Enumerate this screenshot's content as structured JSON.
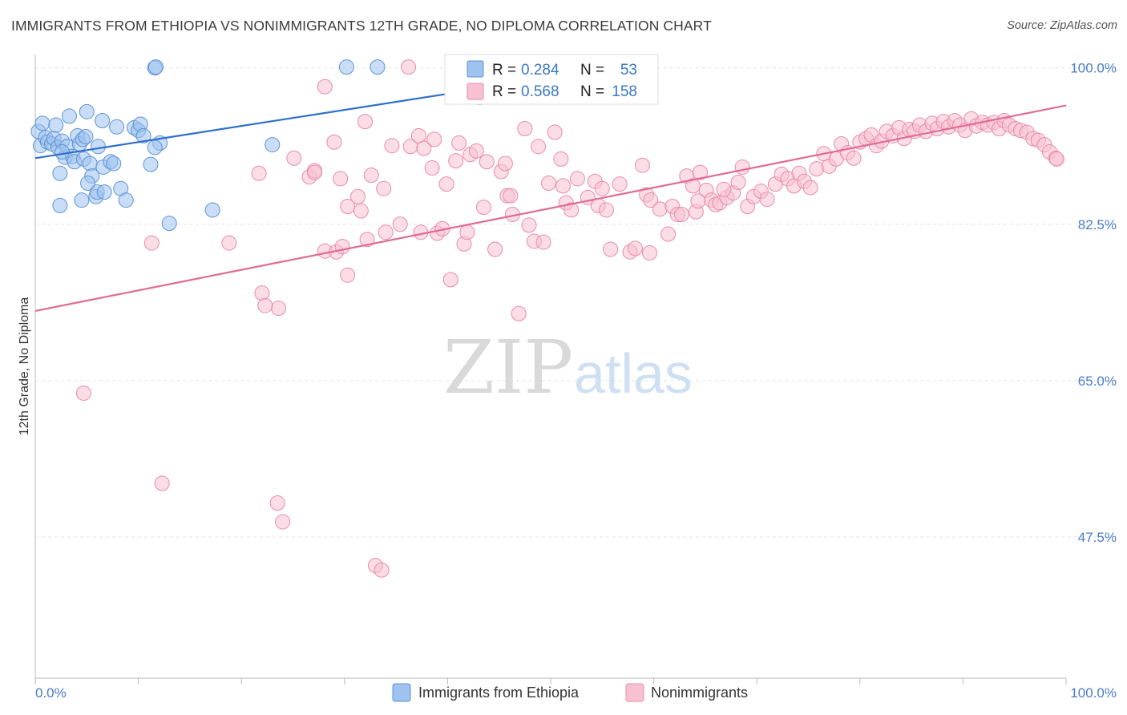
{
  "title": "IMMIGRANTS FROM ETHIOPIA VS NONIMMIGRANTS 12TH GRADE, NO DIPLOMA CORRELATION CHART",
  "source": "Source: ZipAtlas.com",
  "watermark": {
    "zip": "ZIP",
    "atlas": "atlas"
  },
  "legend": {
    "r_label": "R =",
    "n_label": "N =",
    "rows": [
      {
        "r": "0.284",
        "n": "53",
        "color": "#9dc3ee",
        "stroke": "#5d93d6"
      },
      {
        "r": "0.568",
        "n": "158",
        "color": "#f8c1d2",
        "stroke": "#e98aaa"
      }
    ]
  },
  "chart_data": {
    "type": "scatter",
    "title": "IMMIGRANTS FROM ETHIOPIA VS NONIMMIGRANTS 12TH GRADE, NO DIPLOMA CORRELATION CHART",
    "xlabel": "",
    "ylabel": "12th Grade, No Diploma",
    "xlim": [
      0,
      100
    ],
    "ylim": [
      31.7,
      101.5
    ],
    "x_tick_labels": [
      "0.0%",
      "100.0%"
    ],
    "y_ticks": [
      100.0,
      82.5,
      65.0,
      47.5
    ],
    "y_tick_labels": [
      "100.0%",
      "82.5%",
      "65.0%",
      "47.5%"
    ],
    "grid": true,
    "legend_position": "top-center",
    "series": [
      {
        "name": "Immigrants from Ethiopia",
        "color": "#9dc3ee",
        "stroke": "#5d93d6",
        "line_color": "#2d6fcc",
        "trend": [
          [
            0,
            89.9
          ],
          [
            40,
            97.1
          ]
        ],
        "points": [
          [
            0.3,
            92.9
          ],
          [
            0.5,
            91.3
          ],
          [
            0.7,
            93.8
          ],
          [
            1.0,
            92.2
          ],
          [
            1.2,
            91.7
          ],
          [
            1.6,
            91.5
          ],
          [
            1.8,
            92.1
          ],
          [
            2.0,
            93.6
          ],
          [
            2.2,
            91.1
          ],
          [
            2.4,
            88.2
          ],
          [
            2.4,
            84.6
          ],
          [
            2.6,
            91.8
          ],
          [
            2.9,
            90.0
          ],
          [
            3.1,
            91.2
          ],
          [
            3.3,
            94.6
          ],
          [
            3.6,
            90.1
          ],
          [
            3.8,
            89.5
          ],
          [
            4.1,
            92.4
          ],
          [
            4.3,
            91.5
          ],
          [
            4.5,
            85.2
          ],
          [
            4.6,
            92.0
          ],
          [
            4.7,
            89.8
          ],
          [
            4.9,
            92.3
          ],
          [
            5.0,
            95.1
          ],
          [
            5.3,
            89.3
          ],
          [
            5.5,
            87.9
          ],
          [
            5.9,
            85.6
          ],
          [
            6.0,
            86.1
          ],
          [
            6.1,
            91.2
          ],
          [
            6.5,
            94.1
          ],
          [
            6.6,
            88.9
          ],
          [
            6.7,
            86.1
          ],
          [
            7.3,
            89.5
          ],
          [
            7.6,
            89.3
          ],
          [
            7.9,
            93.4
          ],
          [
            8.3,
            86.5
          ],
          [
            8.8,
            85.2
          ],
          [
            9.6,
            93.3
          ],
          [
            10.0,
            93.0
          ],
          [
            10.2,
            93.7
          ],
          [
            10.5,
            92.4
          ],
          [
            11.2,
            89.2
          ],
          [
            11.6,
            100.0
          ],
          [
            11.7,
            100.1
          ],
          [
            12.1,
            91.6
          ],
          [
            11.6,
            91.1
          ],
          [
            2.6,
            90.6
          ],
          [
            5.1,
            87.1
          ],
          [
            13.0,
            82.6
          ],
          [
            17.2,
            84.1
          ],
          [
            23.0,
            91.4
          ],
          [
            30.2,
            100.1
          ],
          [
            33.2,
            100.1
          ]
        ]
      },
      {
        "name": "Nonimmigrants",
        "color": "#f8c1d2",
        "stroke": "#e98aaa",
        "line_color": "#e06b94",
        "trend": [
          [
            0,
            72.8
          ],
          [
            100,
            95.8
          ]
        ],
        "points": [
          [
            4.7,
            63.6
          ],
          [
            11.3,
            80.4
          ],
          [
            12.3,
            53.5
          ],
          [
            18.8,
            80.4
          ],
          [
            21.7,
            88.2
          ],
          [
            22.0,
            74.8
          ],
          [
            23.5,
            51.3
          ],
          [
            23.6,
            73.1
          ],
          [
            24.0,
            49.2
          ],
          [
            25.1,
            89.9
          ],
          [
            26.6,
            87.8
          ],
          [
            27.1,
            88.5
          ],
          [
            28.1,
            79.5
          ],
          [
            28.1,
            97.9
          ],
          [
            29.0,
            91.7
          ],
          [
            29.2,
            79.4
          ],
          [
            29.6,
            87.6
          ],
          [
            29.8,
            80.0
          ],
          [
            30.3,
            76.8
          ],
          [
            30.3,
            84.5
          ],
          [
            31.3,
            85.6
          ],
          [
            31.6,
            84.0
          ],
          [
            32.0,
            94.0
          ],
          [
            32.2,
            80.8
          ],
          [
            32.6,
            88.0
          ],
          [
            33.0,
            44.3
          ],
          [
            33.6,
            43.8
          ],
          [
            33.8,
            86.5
          ],
          [
            34.0,
            81.6
          ],
          [
            34.6,
            91.3
          ],
          [
            35.4,
            82.5
          ],
          [
            36.2,
            100.1
          ],
          [
            36.4,
            91.2
          ],
          [
            37.2,
            92.4
          ],
          [
            37.7,
            91.0
          ],
          [
            38.5,
            88.8
          ],
          [
            38.7,
            92.0
          ],
          [
            39.0,
            81.5
          ],
          [
            39.5,
            82.0
          ],
          [
            39.9,
            87.0
          ],
          [
            40.3,
            76.3
          ],
          [
            40.8,
            89.6
          ],
          [
            41.6,
            80.3
          ],
          [
            41.9,
            81.6
          ],
          [
            42.2,
            90.3
          ],
          [
            42.8,
            90.7
          ],
          [
            43.1,
            96.7
          ],
          [
            43.5,
            84.4
          ],
          [
            43.8,
            89.5
          ],
          [
            44.6,
            79.7
          ],
          [
            45.2,
            88.4
          ],
          [
            45.8,
            85.7
          ],
          [
            46.1,
            85.7
          ],
          [
            46.3,
            83.6
          ],
          [
            46.9,
            72.5
          ],
          [
            47.5,
            93.2
          ],
          [
            47.9,
            82.4
          ],
          [
            48.4,
            80.6
          ],
          [
            48.8,
            91.2
          ],
          [
            49.3,
            80.5
          ],
          [
            49.8,
            87.1
          ],
          [
            50.4,
            92.8
          ],
          [
            51.0,
            89.8
          ],
          [
            51.2,
            86.8
          ],
          [
            51.5,
            84.9
          ],
          [
            52.0,
            84.1
          ],
          [
            52.6,
            87.6
          ],
          [
            53.6,
            85.5
          ],
          [
            54.3,
            87.3
          ],
          [
            54.6,
            84.6
          ],
          [
            55.0,
            86.5
          ],
          [
            55.4,
            84.1
          ],
          [
            55.8,
            79.7
          ],
          [
            56.7,
            87.0
          ],
          [
            57.7,
            79.4
          ],
          [
            58.2,
            79.8
          ],
          [
            58.9,
            89.1
          ],
          [
            59.3,
            85.8
          ],
          [
            59.7,
            85.2
          ],
          [
            60.6,
            84.2
          ],
          [
            61.4,
            81.4
          ],
          [
            61.8,
            84.5
          ],
          [
            62.3,
            83.6
          ],
          [
            62.7,
            83.6
          ],
          [
            63.2,
            87.9
          ],
          [
            63.8,
            86.8
          ],
          [
            64.1,
            83.9
          ],
          [
            64.5,
            88.3
          ],
          [
            65.1,
            86.3
          ],
          [
            65.6,
            85.2
          ],
          [
            66.0,
            84.7
          ],
          [
            66.4,
            84.9
          ],
          [
            67.1,
            85.5
          ],
          [
            67.7,
            86.0
          ],
          [
            68.2,
            87.2
          ],
          [
            68.6,
            88.9
          ],
          [
            69.1,
            84.5
          ],
          [
            69.7,
            85.6
          ],
          [
            70.4,
            86.2
          ],
          [
            71.0,
            85.3
          ],
          [
            71.8,
            87.0
          ],
          [
            72.4,
            88.1
          ],
          [
            73.0,
            87.6
          ],
          [
            73.6,
            86.8
          ],
          [
            74.1,
            88.2
          ],
          [
            74.6,
            87.3
          ],
          [
            75.2,
            86.6
          ],
          [
            75.8,
            88.7
          ],
          [
            76.5,
            90.4
          ],
          [
            77.0,
            89.0
          ],
          [
            77.7,
            89.8
          ],
          [
            78.2,
            91.5
          ],
          [
            78.8,
            90.5
          ],
          [
            79.4,
            89.9
          ],
          [
            80.0,
            91.7
          ],
          [
            80.6,
            92.1
          ],
          [
            81.1,
            92.5
          ],
          [
            81.6,
            91.3
          ],
          [
            82.1,
            91.8
          ],
          [
            82.6,
            92.9
          ],
          [
            83.2,
            92.4
          ],
          [
            83.8,
            93.3
          ],
          [
            84.3,
            92.1
          ],
          [
            84.8,
            93.1
          ],
          [
            85.3,
            92.9
          ],
          [
            85.8,
            93.6
          ],
          [
            86.4,
            92.9
          ],
          [
            87.0,
            93.8
          ],
          [
            87.5,
            93.2
          ],
          [
            88.1,
            94.0
          ],
          [
            88.6,
            93.4
          ],
          [
            89.2,
            94.1
          ],
          [
            89.7,
            93.6
          ],
          [
            90.2,
            93.0
          ],
          [
            90.8,
            94.3
          ],
          [
            91.3,
            93.5
          ],
          [
            91.9,
            93.9
          ],
          [
            92.4,
            93.6
          ],
          [
            93.0,
            93.9
          ],
          [
            93.5,
            93.2
          ],
          [
            94.0,
            94.1
          ],
          [
            94.5,
            93.6
          ],
          [
            95.1,
            93.2
          ],
          [
            95.6,
            93.0
          ],
          [
            96.2,
            92.8
          ],
          [
            96.8,
            92.1
          ],
          [
            97.3,
            91.9
          ],
          [
            97.9,
            91.4
          ],
          [
            98.4,
            90.6
          ],
          [
            99.0,
            89.9
          ],
          [
            37.4,
            81.6
          ],
          [
            41.1,
            91.6
          ],
          [
            45.6,
            89.3
          ],
          [
            59.6,
            79.3
          ],
          [
            64.3,
            85.1
          ],
          [
            66.8,
            86.4
          ],
          [
            99.1,
            89.8
          ],
          [
            27.1,
            88.3
          ],
          [
            22.3,
            73.4
          ]
        ]
      }
    ]
  },
  "axes": {
    "ylabel": "12th Grade, No Diploma",
    "x_left_label": "0.0%",
    "x_right_label": "100.0%"
  },
  "bottom_legend": [
    {
      "label": "Immigrants from Ethiopia",
      "color": "#9dc3ee",
      "stroke": "#5d93d6"
    },
    {
      "label": "Nonimmigrants",
      "color": "#f8c1d2",
      "stroke": "#e98aaa"
    }
  ]
}
